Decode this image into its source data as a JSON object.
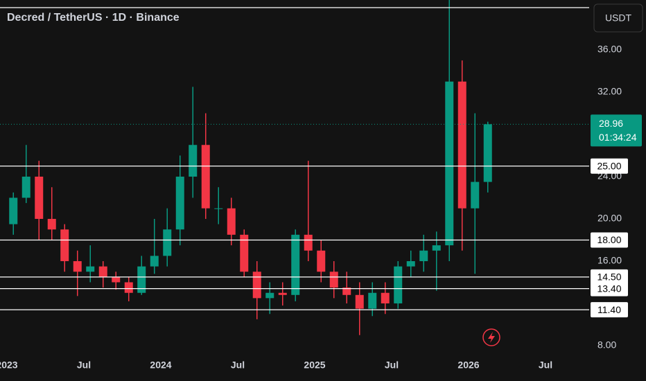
{
  "chart_data": {
    "type": "candlestick",
    "title": "Decred / TetherUS · 1D · Binance",
    "currency": "USDT",
    "x": [
      "2023-01",
      "2023-02",
      "2023-03",
      "2023-04",
      "2023-05",
      "2023-06",
      "2023-07",
      "2023-08",
      "2023-09",
      "2023-10",
      "2023-11",
      "2023-12",
      "2024-01",
      "2024-02",
      "2024-03",
      "2024-04",
      "2024-05",
      "2024-06",
      "2024-07",
      "2024-08",
      "2024-09",
      "2024-10",
      "2024-11",
      "2024-12",
      "2025-01",
      "2025-02",
      "2025-03",
      "2025-04",
      "2025-05",
      "2025-06",
      "2025-07",
      "2025-08",
      "2025-09",
      "2025-10",
      "2025-11",
      "2025-12",
      "2026-01",
      "2026-02"
    ],
    "open": [
      19.5,
      22,
      24,
      20,
      19,
      16,
      15,
      15.5,
      14.5,
      14,
      13,
      15.5,
      16.5,
      19,
      24,
      27,
      21,
      21,
      18.5,
      15,
      12.5,
      13,
      12.8,
      18.5,
      17,
      15,
      13.5,
      12.8,
      11.5,
      13,
      12,
      15.5,
      16,
      17,
      17.5,
      33,
      21,
      23.5
    ],
    "high": [
      22.5,
      27,
      25.5,
      23,
      19.5,
      17,
      17.5,
      16,
      15,
      14.5,
      16.5,
      20,
      21,
      26,
      32.5,
      30,
      23,
      22,
      19,
      16,
      14,
      14,
      19,
      25.5,
      18,
      16,
      15,
      14,
      14,
      14,
      16,
      17,
      18.5,
      18.8,
      41,
      35,
      30,
      29.2
    ],
    "low": [
      18.5,
      21.5,
      18,
      18,
      15,
      12.7,
      14,
      13.5,
      13.3,
      12.2,
      12.8,
      14.8,
      15.5,
      17.5,
      22,
      20,
      19.5,
      17.5,
      14.5,
      10.5,
      11,
      11.8,
      12.2,
      16,
      14,
      12.5,
      12,
      9,
      10.8,
      11,
      11.5,
      14.5,
      15,
      13.2,
      16,
      17,
      14.8,
      22.5
    ],
    "close": [
      22,
      24,
      20,
      19,
      16,
      15,
      15.5,
      14.5,
      14,
      13,
      15.5,
      16.5,
      19,
      24,
      27,
      21,
      21,
      18.5,
      15,
      12.5,
      13,
      12.8,
      18.5,
      17,
      15,
      13.5,
      12.8,
      11.5,
      13,
      12,
      15.5,
      16,
      17,
      17.5,
      33,
      21,
      23.5,
      28.96
    ],
    "up_color": "#089981",
    "down_color": "#f23645",
    "ylim": [
      6.95,
      40.72
    ],
    "yticks": [
      {
        "value": 8,
        "label": "8.00"
      },
      {
        "value": 16,
        "label": "16.00"
      },
      {
        "value": 20,
        "label": "20.00"
      },
      {
        "value": 24,
        "label": "24.00"
      },
      {
        "value": 32,
        "label": "32.00"
      },
      {
        "value": 36,
        "label": "36.00"
      }
    ],
    "xticks": [
      {
        "value": "2023-01",
        "label": "2023"
      },
      {
        "value": "2023-07",
        "label": "Jul"
      },
      {
        "value": "2024-01",
        "label": "2024"
      },
      {
        "value": "2024-07",
        "label": "Jul"
      },
      {
        "value": "2025-01",
        "label": "2025"
      },
      {
        "value": "2025-07",
        "label": "Jul"
      },
      {
        "value": "2026-01",
        "label": "2026"
      },
      {
        "value": "2026-07",
        "label": "Jul"
      }
    ],
    "levels": [
      40,
      {
        "value": 25,
        "label": "25.00"
      },
      {
        "value": 18,
        "label": "18.00"
      },
      {
        "value": 14.5,
        "label": "14.50"
      },
      {
        "value": 13.4,
        "label": "13.40"
      },
      {
        "value": 11.4,
        "label": "11.40"
      }
    ],
    "last_price": 28.96,
    "countdown": "01:34:24"
  }
}
